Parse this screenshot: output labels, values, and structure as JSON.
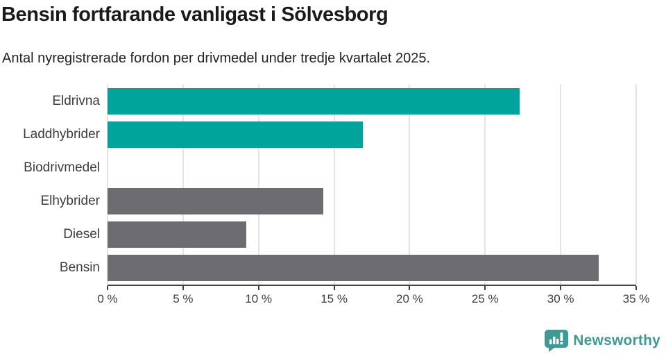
{
  "header": {
    "title": "Bensin fortfarande vanligast i Sölvesborg",
    "subtitle": "Antal nyregistrerade fordon per drivmedel under tredje kvartalet 2025."
  },
  "chart_data": {
    "type": "bar",
    "orientation": "horizontal",
    "title": "Bensin fortfarande vanligast i Sölvesborg",
    "subtitle": "Antal nyregistrerade fordon per drivmedel under tredje kvartalet 2025.",
    "categories": [
      "Eldrivna",
      "Laddhybrider",
      "Biodrivmedel",
      "Elhybrider",
      "Diesel",
      "Bensin"
    ],
    "values": [
      27.3,
      16.9,
      0,
      14.3,
      9.2,
      32.5
    ],
    "unit": "%",
    "bar_colors": [
      "#00a49a",
      "#00a49a",
      "#00a49a",
      "#6c6c71",
      "#6c6c71",
      "#6c6c71"
    ],
    "xlim": [
      0,
      35
    ],
    "tick_values": [
      0,
      5,
      10,
      15,
      20,
      25,
      30,
      35
    ],
    "x_tick_labels": [
      "0 %",
      "5 %",
      "10 %",
      "15 %",
      "20 %",
      "25 %",
      "30 %",
      "35 %"
    ],
    "xlabel": "",
    "ylabel": "",
    "grid": "vertical",
    "legend": "none"
  },
  "colors": {
    "highlight_teal": "#00a49a",
    "neutral_gray": "#6c6c71",
    "gridline": "#e4e4e4",
    "axis": "#424242",
    "logo_teal": "#3d9a94"
  },
  "footer": {
    "brand": "Newsworthy"
  }
}
